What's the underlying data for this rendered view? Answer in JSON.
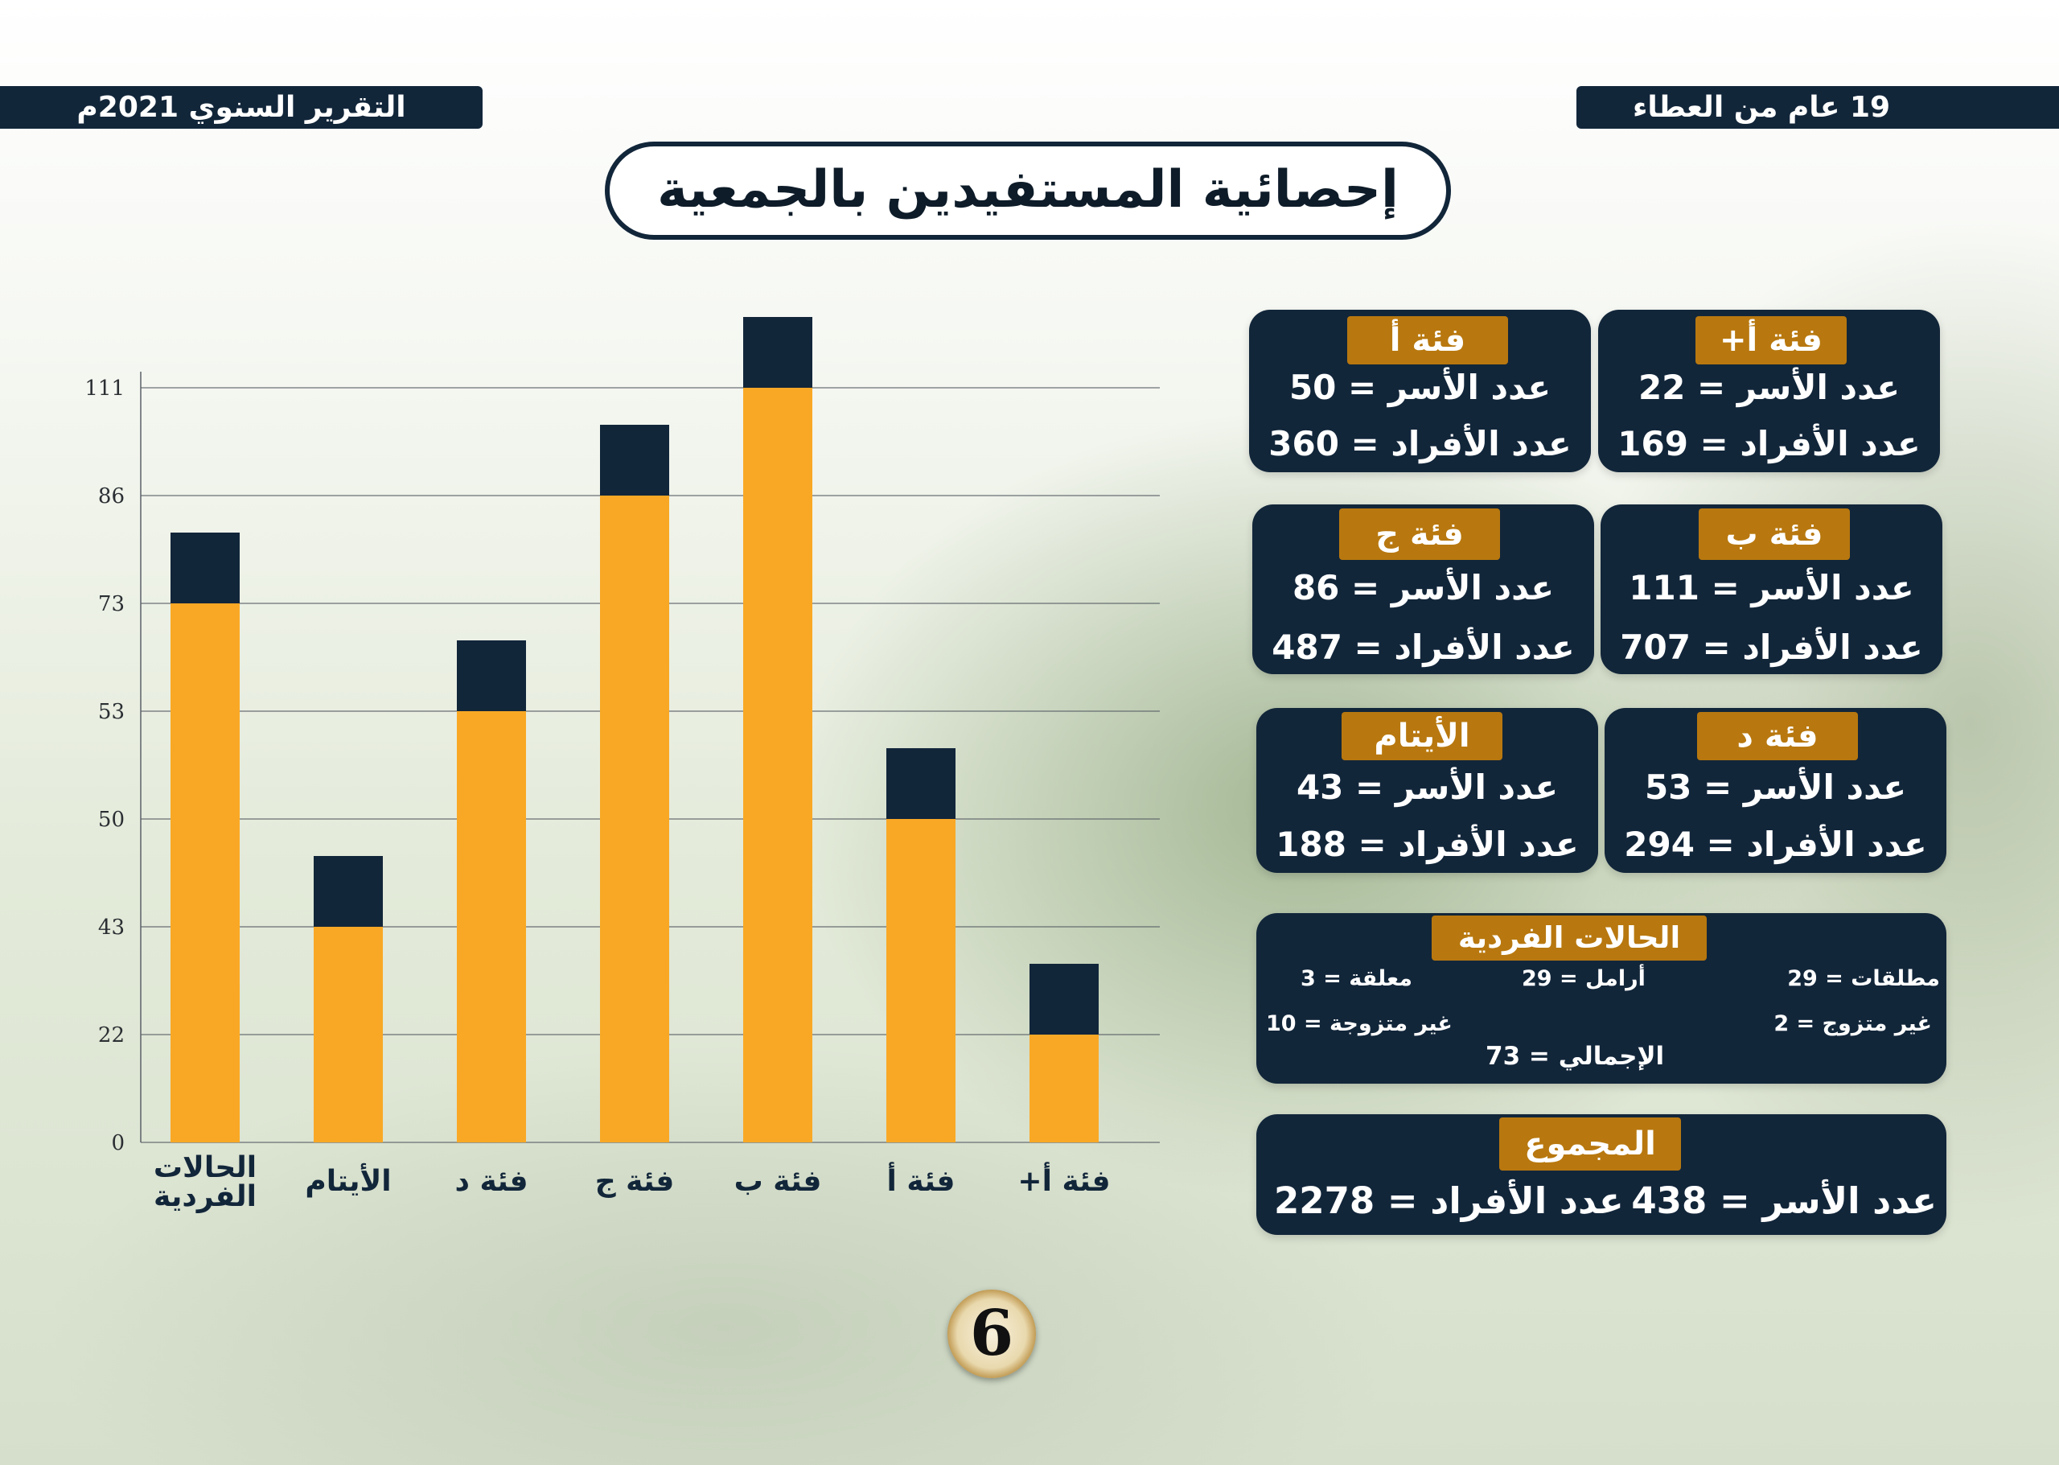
{
  "header": {
    "left_banner": "التقرير السنوي 2021م",
    "right_banner": "19 عام من العطاء",
    "title": "إحصائية المستفيدين بالجمعية"
  },
  "colors": {
    "navy": "#12263a",
    "orange": "#f9a825",
    "gold_badge": "#b8780f"
  },
  "chart_data": {
    "type": "bar",
    "categories": [
      "فئة أ+",
      "فئة أ",
      "فئة ب",
      "فئة ج",
      "فئة د",
      "الأيتام",
      "الحالات الفردية"
    ],
    "category_lines": [
      [
        "فئة أ+"
      ],
      [
        "فئة أ"
      ],
      [
        "فئة ب"
      ],
      [
        "فئة ج"
      ],
      [
        "فئة د"
      ],
      [
        "الأيتام"
      ],
      [
        "الحالات",
        "الفردية"
      ]
    ],
    "series": [
      {
        "values": [
          22,
          50,
          111,
          86,
          53,
          43,
          73
        ],
        "color": "#f9a825"
      }
    ],
    "y_tick_labels": [
      "0",
      "22",
      "43",
      "50",
      "53",
      "73",
      "86",
      "111"
    ],
    "grid": true,
    "orientation": "right-to-left"
  },
  "cards": [
    {
      "name": "card-a-plus",
      "badge": "فئة أ+",
      "line1": "عدد الأسر = 22",
      "line2": "عدد الأفراد = 169"
    },
    {
      "name": "card-a",
      "badge": "فئة أ",
      "line1": "عدد الأسر = 50",
      "line2": "عدد الأفراد = 360"
    },
    {
      "name": "card-b",
      "badge": "فئة ب",
      "line1": "عدد الأسر = 111",
      "line2": "عدد الأفراد = 707"
    },
    {
      "name": "card-c",
      "badge": "فئة ج",
      "line1": "عدد الأسر = 86",
      "line2": "عدد الأفراد = 487"
    },
    {
      "name": "card-d",
      "badge": "فئة د",
      "line1": "عدد الأسر = 53",
      "line2": "عدد الأفراد = 294"
    },
    {
      "name": "card-orphans",
      "badge": "الأيتام",
      "line1": "عدد الأسر = 43",
      "line2": "عدد الأفراد = 188"
    }
  ],
  "individual_cases": {
    "badge": "الحالات الفردية",
    "divorced": "مطلقات = 29",
    "widows": "أرامل = 29",
    "suspended": "معلقة = 3",
    "unmarried_male": "غير متزوج = 2",
    "unmarried_female": "غير متزوجة = 10",
    "total": "الإجمالي = 73"
  },
  "totals": {
    "badge": "المجموع",
    "families": "عدد الأسر = 438",
    "members": "عدد الأفراد = 2278"
  },
  "page_number": "6"
}
